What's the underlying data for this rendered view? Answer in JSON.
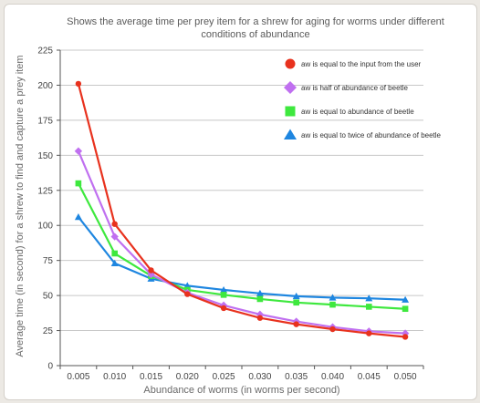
{
  "chart_data": {
    "type": "line",
    "title": "Shows the average time per prey item for a shrew for aging for worms under different conditions of abundance",
    "xlabel": "Abundance of worms (in worms per second)",
    "ylabel": "Average time (in second) for a shrew to find and capture a prey item",
    "categories": [
      "0.005",
      "0.010",
      "0.015",
      "0.020",
      "0.025",
      "0.030",
      "0.035",
      "0.040",
      "0.045",
      "0.050"
    ],
    "ylim": [
      0,
      225
    ],
    "yticks": [
      0,
      25,
      50,
      75,
      100,
      125,
      150,
      175,
      200,
      225
    ],
    "grid": "horizontal",
    "legend_position": "right",
    "series": [
      {
        "name": "aw is equal to the input from the user",
        "color": "#e8321e",
        "marker": "circle",
        "values": [
          201,
          101,
          68,
          51,
          41,
          34,
          29.5,
          26,
          23,
          20.5
        ]
      },
      {
        "name": "aw is half of abundance of beetle",
        "color": "#c070f0",
        "marker": "diamond",
        "values": [
          153,
          92,
          65,
          52,
          43,
          36.5,
          31.5,
          27.5,
          24.5,
          23
        ]
      },
      {
        "name": "aw is equal to abundance of beetle",
        "color": "#3ee83e",
        "marker": "square",
        "values": [
          130,
          80,
          64,
          54,
          50.5,
          47.5,
          45,
          43.5,
          42,
          40.5
        ]
      },
      {
        "name": "aw is equal to twice of abundance of beetle",
        "color": "#1e86e0",
        "marker": "triangle",
        "values": [
          106,
          73,
          62,
          57,
          54,
          51.5,
          49.5,
          48.5,
          48,
          47
        ]
      }
    ]
  }
}
